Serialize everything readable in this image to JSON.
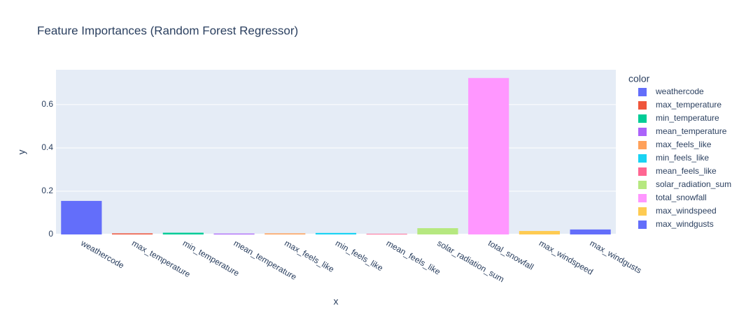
{
  "chart_data": {
    "type": "bar",
    "title": "Feature Importances (Random Forest Regressor)",
    "x_label": "x",
    "y_label": "y",
    "legend_title": "color",
    "categories": [
      "weathercode",
      "max_temperature",
      "min_temperature",
      "mean_temperature",
      "max_feels_like",
      "min_feels_like",
      "mean_feels_like",
      "solar_radiation_sum",
      "total_snowfall",
      "max_windspeed",
      "max_windgusts"
    ],
    "values": [
      0.155,
      0.005,
      0.008,
      0.004,
      0.005,
      0.007,
      0.003,
      0.029,
      0.723,
      0.016,
      0.023
    ],
    "colors": [
      "#636efa",
      "#EF553B",
      "#00cc96",
      "#ab63fa",
      "#FFA15A",
      "#19d3f3",
      "#FF6692",
      "#B6E880",
      "#FF97FF",
      "#FECB52",
      "#636efa"
    ],
    "ylim": [
      0,
      0.761
    ],
    "yticks": [
      0,
      0.2,
      0.4,
      0.6
    ],
    "grid": true,
    "legend": "right"
  }
}
